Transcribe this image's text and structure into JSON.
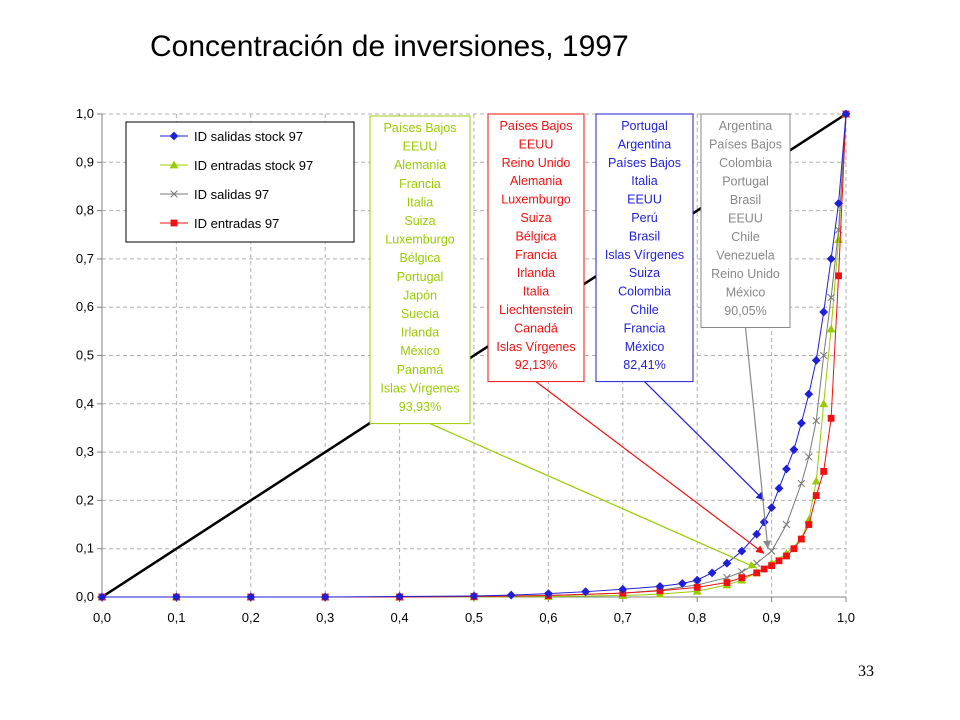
{
  "title": "Concentración de inversiones, 1997",
  "page_number": "33",
  "chart_data": {
    "type": "line",
    "xlim": [
      0,
      1
    ],
    "ylim": [
      0,
      1
    ],
    "x_ticks": [
      "0,0",
      "0,1",
      "0,2",
      "0,3",
      "0,4",
      "0,5",
      "0,6",
      "0,7",
      "0,8",
      "0,9",
      "1,0"
    ],
    "y_ticks": [
      "0,0",
      "0,1",
      "0,2",
      "0,3",
      "0,4",
      "0,5",
      "0,6",
      "0,7",
      "0,8",
      "0,9",
      "1,0"
    ],
    "grid": true,
    "legend_position": "top-left",
    "diagonal": {
      "x": [
        0,
        1
      ],
      "y": [
        0,
        1
      ],
      "color": "#000000"
    },
    "series": [
      {
        "name": "ID salidas stock 97",
        "color": "#1f1fd6",
        "marker": "diamond",
        "x": [
          0.0,
          0.1,
          0.2,
          0.3,
          0.4,
          0.5,
          0.55,
          0.6,
          0.65,
          0.7,
          0.75,
          0.78,
          0.8,
          0.82,
          0.84,
          0.86,
          0.88,
          0.89,
          0.9,
          0.91,
          0.92,
          0.93,
          0.94,
          0.95,
          0.96,
          0.97,
          0.98,
          0.99,
          1.0
        ],
        "y": [
          0.0,
          0.0,
          0.0,
          0.0,
          0.001,
          0.002,
          0.004,
          0.007,
          0.011,
          0.016,
          0.022,
          0.028,
          0.035,
          0.05,
          0.07,
          0.095,
          0.13,
          0.155,
          0.185,
          0.225,
          0.265,
          0.305,
          0.36,
          0.42,
          0.49,
          0.59,
          0.7,
          0.815,
          1.0
        ]
      },
      {
        "name": "ID entradas stock 97",
        "color": "#99cc00",
        "marker": "triangle",
        "x": [
          0.0,
          0.1,
          0.2,
          0.3,
          0.4,
          0.5,
          0.6,
          0.7,
          0.75,
          0.8,
          0.84,
          0.86,
          0.88,
          0.9,
          0.92,
          0.94,
          0.95,
          0.96,
          0.97,
          0.98,
          0.99,
          1.0
        ],
        "y": [
          0.0,
          0.0,
          0.0,
          0.0,
          0.0,
          0.0,
          0.001,
          0.003,
          0.006,
          0.012,
          0.025,
          0.035,
          0.05,
          0.07,
          0.09,
          0.12,
          0.16,
          0.24,
          0.4,
          0.555,
          0.74,
          1.0
        ]
      },
      {
        "name": "ID salidas 97",
        "color": "#777777",
        "marker": "x",
        "x": [
          0.0,
          0.1,
          0.2,
          0.3,
          0.4,
          0.5,
          0.6,
          0.7,
          0.75,
          0.8,
          0.84,
          0.86,
          0.88,
          0.9,
          0.92,
          0.94,
          0.95,
          0.96,
          0.97,
          0.98,
          0.99,
          1.0
        ],
        "y": [
          0.0,
          0.0,
          0.0,
          0.0,
          0.0,
          0.001,
          0.003,
          0.008,
          0.014,
          0.025,
          0.04,
          0.052,
          0.07,
          0.095,
          0.15,
          0.235,
          0.29,
          0.365,
          0.5,
          0.62,
          0.76,
          1.0
        ]
      },
      {
        "name": "ID entradas 97",
        "color": "#ee1111",
        "marker": "square",
        "x": [
          0.0,
          0.1,
          0.2,
          0.3,
          0.4,
          0.5,
          0.6,
          0.7,
          0.75,
          0.8,
          0.84,
          0.86,
          0.88,
          0.89,
          0.9,
          0.91,
          0.92,
          0.93,
          0.94,
          0.95,
          0.96,
          0.97,
          0.98,
          0.99,
          1.0
        ],
        "y": [
          0.0,
          0.0,
          0.0,
          0.0,
          0.0,
          0.001,
          0.003,
          0.008,
          0.013,
          0.02,
          0.03,
          0.04,
          0.05,
          0.058,
          0.065,
          0.075,
          0.085,
          0.1,
          0.12,
          0.15,
          0.21,
          0.26,
          0.37,
          0.665,
          1.0
        ]
      }
    ],
    "annotations": [
      {
        "series": "ID entradas stock 97",
        "color": "#99cc00",
        "items": [
          "Países Bajos",
          "EEUU",
          "Alemania",
          "Francia",
          "Italia",
          "Suiza",
          "Luxemburgo",
          "Bélgica",
          "Portugal",
          "Japón",
          "Suecia",
          "Irlanda",
          "México",
          "Panamá",
          "Islas Vírgenes",
          "93,93%"
        ],
        "target": {
          "x": 0.88,
          "y": 0.06
        }
      },
      {
        "series": "ID entradas 97",
        "color": "#ee1111",
        "items": [
          "Países Bajos",
          "EEUU",
          "Reino Unido",
          "Alemania",
          "Luxemburgo",
          "Suiza",
          "Bélgica",
          "Francia",
          "Irlanda",
          "Italia",
          "Liechtenstein",
          "Canadá",
          "Islas Vírgenes",
          "92,13%"
        ],
        "target": {
          "x": 0.89,
          "y": 0.09
        }
      },
      {
        "series": "ID salidas stock 97",
        "color": "#1f1fd6",
        "items": [
          "Portugal",
          "Argentina",
          "Países Bajos",
          "Italia",
          "EEUU",
          "Perú",
          "Brasil",
          "Islas Vírgenes",
          "Suiza",
          "Colombia",
          "Chile",
          "Francia",
          "México",
          "82,41%"
        ],
        "target": {
          "x": 0.89,
          "y": 0.2
        }
      },
      {
        "series": "ID salidas 97",
        "color": "#888888",
        "items": [
          "Argentina",
          "Países Bajos",
          "Colombia",
          "Portugal",
          "Brasil",
          "EEUU",
          "Chile",
          "Venezuela",
          "Reino Unido",
          "México",
          "90,05%"
        ],
        "target": {
          "x": 0.895,
          "y": 0.1
        }
      }
    ]
  }
}
